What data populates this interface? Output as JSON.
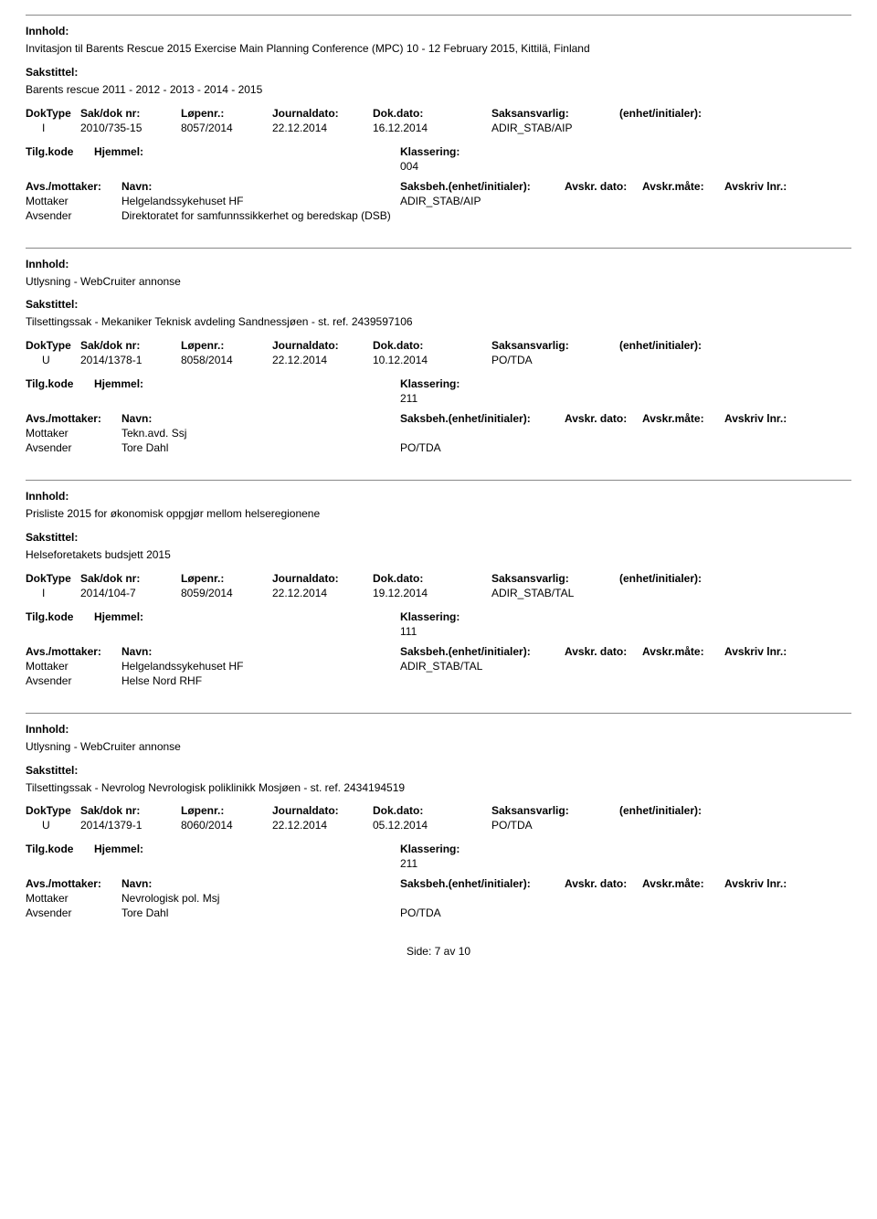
{
  "labels": {
    "innhold": "Innhold:",
    "sakstittel": "Sakstittel:",
    "doktype": "DokType",
    "sakdok": "Sak/dok nr:",
    "lopenr": "Løpenr.:",
    "journal": "Journaldato:",
    "dokdato": "Dok.dato:",
    "saksans": "Saksansvarlig:",
    "enhet": "(enhet/initialer):",
    "tilgkode": "Tilg.kode",
    "hjemmel": "Hjemmel:",
    "klasser": "Klassering:",
    "avsmottaker": "Avs./mottaker:",
    "navn": "Navn:",
    "saksbeh": "Saksbeh.(enhet/initialer):",
    "avskrdato": "Avskr. dato:",
    "avskrmate": "Avskr.måte:",
    "avskrlnr": "Avskriv lnr.:",
    "mottaker": "Mottaker",
    "avsender": "Avsender"
  },
  "records": [
    {
      "innhold": "Invitasjon til Barents Rescue 2015 Exercise Main Planning Conference (MPC) 10 - 12 February 2015, Kittilä, Finland",
      "sakstittel": "Barents rescue 2011 - 2012 - 2013 - 2014 - 2015",
      "doktype": "I",
      "sakdok": "2010/735-15",
      "lopenr": "8057/2014",
      "journal": "22.12.2014",
      "dokdato": "16.12.2014",
      "saksans": "ADIR_STAB/AIP",
      "klasser_val": "004",
      "parties": [
        {
          "role": "Mottaker",
          "name": "Helgelandssykehuset HF",
          "sb": "ADIR_STAB/AIP"
        },
        {
          "role": "Avsender",
          "name": "Direktoratet for samfunnssikkerhet og beredskap (DSB)",
          "sb": ""
        }
      ]
    },
    {
      "innhold": "Utlysning - WebCruiter annonse",
      "sakstittel": "Tilsettingssak - Mekaniker Teknisk avdeling Sandnessjøen - st. ref. 2439597106",
      "doktype": "U",
      "sakdok": "2014/1378-1",
      "lopenr": "8058/2014",
      "journal": "22.12.2014",
      "dokdato": "10.12.2014",
      "saksans": "PO/TDA",
      "klasser_val": "211",
      "parties": [
        {
          "role": "Mottaker",
          "name": "Tekn.avd. Ssj",
          "sb": ""
        },
        {
          "role": "Avsender",
          "name": "Tore Dahl",
          "sb": "PO/TDA"
        }
      ]
    },
    {
      "innhold": "Prisliste 2015 for økonomisk oppgjør mellom helseregionene",
      "sakstittel": "Helseforetakets budsjett 2015",
      "doktype": "I",
      "sakdok": "2014/104-7",
      "lopenr": "8059/2014",
      "journal": "22.12.2014",
      "dokdato": "19.12.2014",
      "saksans": "ADIR_STAB/TAL",
      "klasser_val": "111",
      "parties": [
        {
          "role": "Mottaker",
          "name": "Helgelandssykehuset HF",
          "sb": "ADIR_STAB/TAL"
        },
        {
          "role": "Avsender",
          "name": "Helse Nord RHF",
          "sb": ""
        }
      ]
    },
    {
      "innhold": "Utlysning - WebCruiter annonse",
      "sakstittel": "Tilsettingssak - Nevrolog Nevrologisk poliklinikk Mosjøen - st. ref. 2434194519",
      "doktype": "U",
      "sakdok": "2014/1379-1",
      "lopenr": "8060/2014",
      "journal": "22.12.2014",
      "dokdato": "05.12.2014",
      "saksans": "PO/TDA",
      "klasser_val": "211",
      "parties": [
        {
          "role": "Mottaker",
          "name": "Nevrologisk pol. Msj",
          "sb": ""
        },
        {
          "role": "Avsender",
          "name": "Tore Dahl",
          "sb": "PO/TDA"
        }
      ]
    }
  ],
  "footer": {
    "side_lbl": "Side:",
    "page": "7",
    "av": "av",
    "total": "10"
  }
}
